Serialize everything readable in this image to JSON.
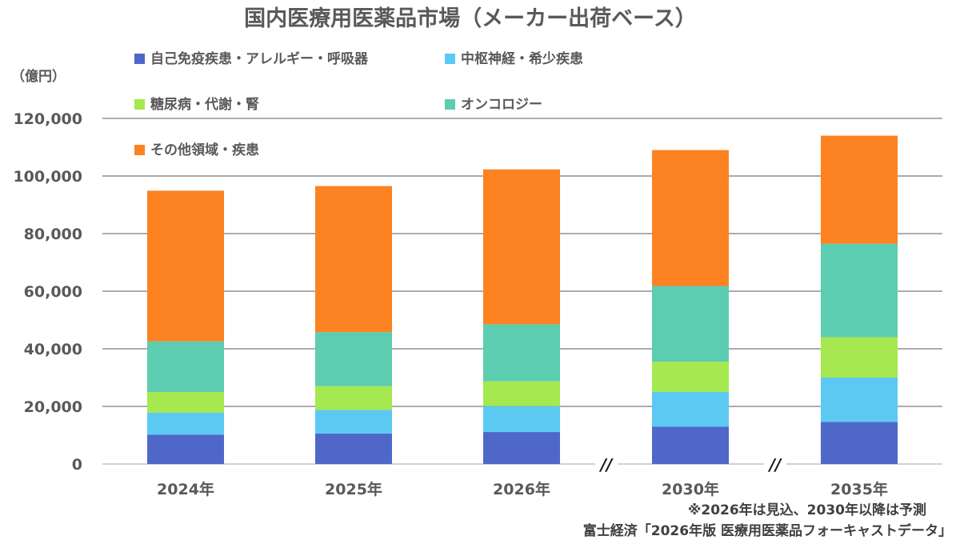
{
  "chart_data": {
    "type": "bar",
    "stacked": true,
    "title": "国内医療用医薬品市場（メーカー出荷ベース）",
    "ylabel": "（億円）",
    "ylim": [
      0,
      120000
    ],
    "yticks": [
      0,
      20000,
      40000,
      60000,
      80000,
      100000,
      120000
    ],
    "ytick_labels": [
      "0",
      "20,000",
      "40,000",
      "60,000",
      "80,000",
      "100,000",
      "120,000"
    ],
    "categories": [
      "2024年",
      "2025年",
      "2026年",
      "2030年",
      "2035年"
    ],
    "axis_break_marks": [
      "//",
      "//"
    ],
    "grid": true,
    "legend_position": "top",
    "series": [
      {
        "name": "自己免疫疾患・アレルギー・呼吸器",
        "color": "#4f67c9",
        "values": [
          10200,
          10600,
          11100,
          13000,
          14600
        ]
      },
      {
        "name": "中枢神経・希少疾患",
        "color": "#5bc9f2",
        "values": [
          7600,
          8200,
          9000,
          12000,
          15400
        ]
      },
      {
        "name": "糖尿病・代謝・腎",
        "color": "#a6e84f",
        "values": [
          7200,
          8200,
          8600,
          10500,
          14000
        ]
      },
      {
        "name": "オンコロジー",
        "color": "#5ccdb0",
        "values": [
          17600,
          18800,
          19800,
          26300,
          32500
        ]
      },
      {
        "name": "その他領域・疾患",
        "color": "#fc8222",
        "values": [
          52300,
          50700,
          53800,
          47200,
          37500
        ]
      }
    ],
    "notes": [
      "※2026年は見込、2030年以降は予測",
      "富士経済「2026年版 医療用医薬品フォーキャストデータ」"
    ]
  }
}
